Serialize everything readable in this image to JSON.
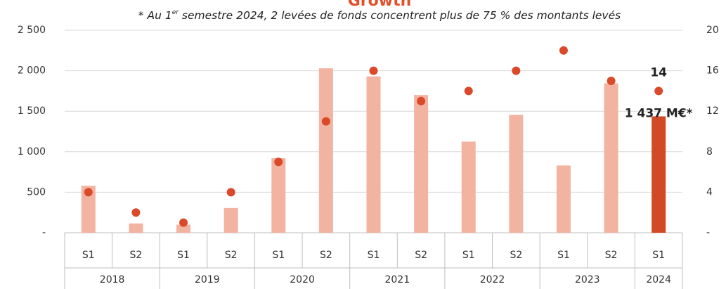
{
  "chart_data": {
    "type": "bar",
    "title": "Growth",
    "subtitle": [
      "* Au 1",
      "er",
      " semestre 2024, 2 levées de fonds concentrent plus de 75 % des montants levés"
    ],
    "categories": [
      "S1",
      "S2",
      "S1",
      "S2",
      "S1",
      "S2",
      "S1",
      "S2",
      "S1",
      "S2",
      "S1",
      "S2",
      "S1"
    ],
    "groups": [
      {
        "label": "2018",
        "count": 2
      },
      {
        "label": "2019",
        "count": 2
      },
      {
        "label": "2020",
        "count": 2
      },
      {
        "label": "2021",
        "count": 2
      },
      {
        "label": "2022",
        "count": 2
      },
      {
        "label": "2023",
        "count": 2
      },
      {
        "label": "2024",
        "count": 1
      }
    ],
    "series": [
      {
        "type": "bar",
        "colors": [
          "#f2b3a1",
          "#f2b3a1",
          "#f2b3a1",
          "#f2b3a1",
          "#f2b3a1",
          "#f2b3a1",
          "#f2b3a1",
          "#f2b3a1",
          "#f2b3a1",
          "#f2b3a1",
          "#f2b3a1",
          "#f2b3a1",
          "#d04a25"
        ],
        "values": [
          580,
          115,
          100,
          305,
          920,
          2030,
          1930,
          1700,
          1125,
          1455,
          830,
          1845,
          1437
        ],
        "value_labels": [
          null,
          null,
          null,
          null,
          null,
          null,
          null,
          null,
          null,
          null,
          null,
          null,
          "1 437 M€*"
        ]
      },
      {
        "type": "scatter",
        "axis": "y2",
        "color": "#d9492a",
        "values": [
          4,
          2,
          1,
          4,
          7,
          11,
          16,
          13,
          14,
          16,
          18,
          15,
          14
        ],
        "value_labels": [
          null,
          null,
          null,
          null,
          null,
          null,
          null,
          null,
          null,
          null,
          null,
          null,
          "14"
        ]
      }
    ],
    "ylim": [
      0,
      2500
    ],
    "yticks": [
      {
        "value": 0,
        "label": "-"
      },
      500,
      {
        "value": 1000,
        "label": "1 000"
      },
      {
        "value": 1500,
        "label": "1 500"
      },
      {
        "value": 2000,
        "label": "2 000"
      },
      {
        "value": 2500,
        "label": "2 500"
      }
    ],
    "y2lim": [
      0,
      20
    ],
    "y2ticks": [
      {
        "value": 0,
        "label": "-"
      },
      4,
      8,
      12,
      16,
      20
    ],
    "grid": true
  }
}
